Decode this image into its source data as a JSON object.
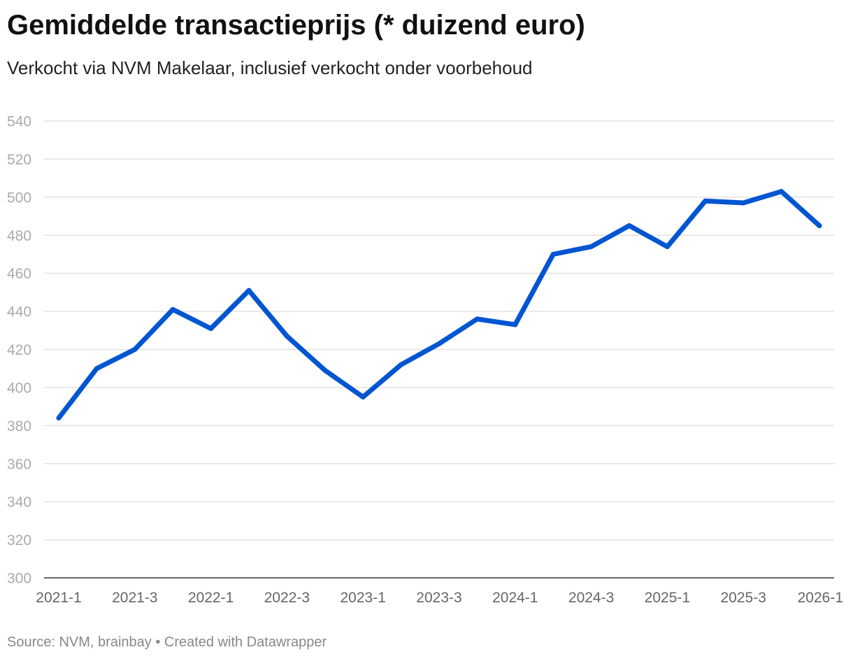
{
  "header": {
    "title": "Gemiddelde transactieprijs (* duizend euro)",
    "subtitle": "Verkocht via NVM Makelaar, inclusief verkocht onder voorbehoud"
  },
  "footer": {
    "source": "Source: NVM, brainbay • Created with Datawrapper"
  },
  "colors": {
    "line": "#0055d1",
    "grid": "#e2e2e2"
  },
  "chart_data": {
    "type": "line",
    "title": "Gemiddelde transactieprijs (* duizend euro)",
    "subtitle": "Verkocht via NVM Makelaar, inclusief verkocht onder voorbehoud",
    "x": [
      "2021-1",
      "2021-2",
      "2021-3",
      "2021-4",
      "2022-1",
      "2022-2",
      "2022-3",
      "2022-4",
      "2023-1",
      "2023-2",
      "2023-3",
      "2023-4",
      "2024-1",
      "2024-2",
      "2024-3",
      "2024-4",
      "2025-1",
      "2025-2",
      "2025-3",
      "2025-4",
      "2026-1"
    ],
    "series": [
      {
        "values": [
          384,
          410,
          420,
          441,
          431,
          451,
          427,
          409,
          395,
          412,
          423,
          436,
          433,
          470,
          474,
          485,
          474,
          498,
          497,
          503,
          485
        ]
      }
    ],
    "x_tick_labels": [
      "2021-1",
      "2021-3",
      "2022-1",
      "2022-3",
      "2023-1",
      "2023-3",
      "2024-1",
      "2024-3",
      "2025-1",
      "2025-3",
      "2026-1"
    ],
    "y_ticks": [
      300,
      320,
      340,
      360,
      380,
      400,
      420,
      440,
      460,
      480,
      500,
      520,
      540
    ],
    "ylim": [
      300,
      540
    ],
    "grid": true,
    "legend": "none"
  }
}
